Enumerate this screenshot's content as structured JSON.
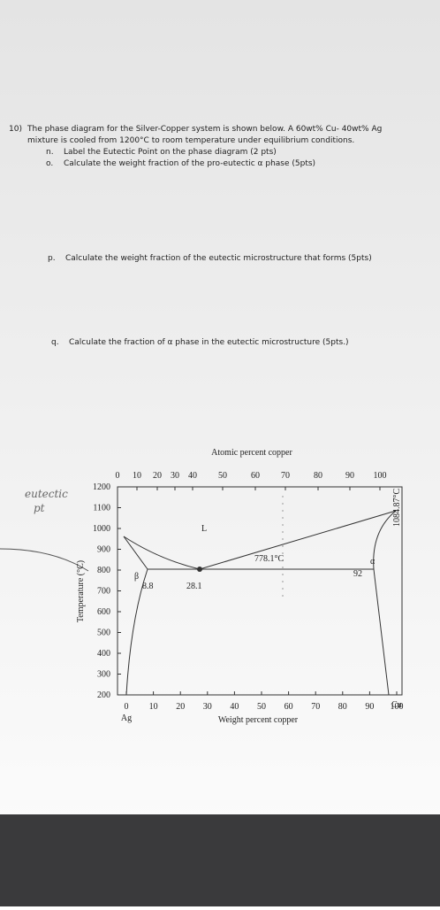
{
  "question": {
    "number": "10)",
    "text": "The phase diagram for the Silver-Copper system is shown below. A 60wt% Cu- 40wt% Ag",
    "text2": "mixture is cooled from 1200°C to room temperature under equilibrium conditions.",
    "parts": [
      {
        "label": "n.",
        "text": "Label the Eutectic Point on the phase diagram (2 pts)"
      },
      {
        "label": "o.",
        "text": "Calculate the weight fraction of the pro-eutectic α phase (5pts)"
      },
      {
        "label": "p.",
        "text": "Calculate the weight fraction of the eutectic microstructure that forms (5pts)"
      },
      {
        "label": "q.",
        "text": "Calculate the fraction of α phase in the eutectic microstructure (5pts.)"
      }
    ]
  },
  "diagram": {
    "top_axis_title": "Atomic percent copper",
    "top_ticks": [
      "0",
      "10",
      "20",
      "30",
      "40",
      "50",
      "60",
      "70",
      "80",
      "90",
      "100"
    ],
    "y_axis_title": "Temperature (°C)",
    "y_ticks": [
      "1200",
      "1100",
      "1000",
      "900",
      "800",
      "700",
      "600",
      "500",
      "400",
      "300",
      "200"
    ],
    "x_axis_title": "Weight percent copper",
    "x_ticks": [
      "0",
      "10",
      "20",
      "30",
      "40",
      "50",
      "60",
      "70",
      "80",
      "90",
      "100"
    ],
    "x_end_labels": [
      "Ag",
      "Cu"
    ],
    "labels": {
      "liquid": "L",
      "eutectic_temp": "778.1°C",
      "beta": "β",
      "alpha": "α",
      "beta_comp": "8.8",
      "eutectic_comp": "28.1",
      "alpha_comp": "92",
      "cu_melt": "1084.87°C"
    },
    "handwriting": [
      "eutectic",
      "pt"
    ]
  }
}
